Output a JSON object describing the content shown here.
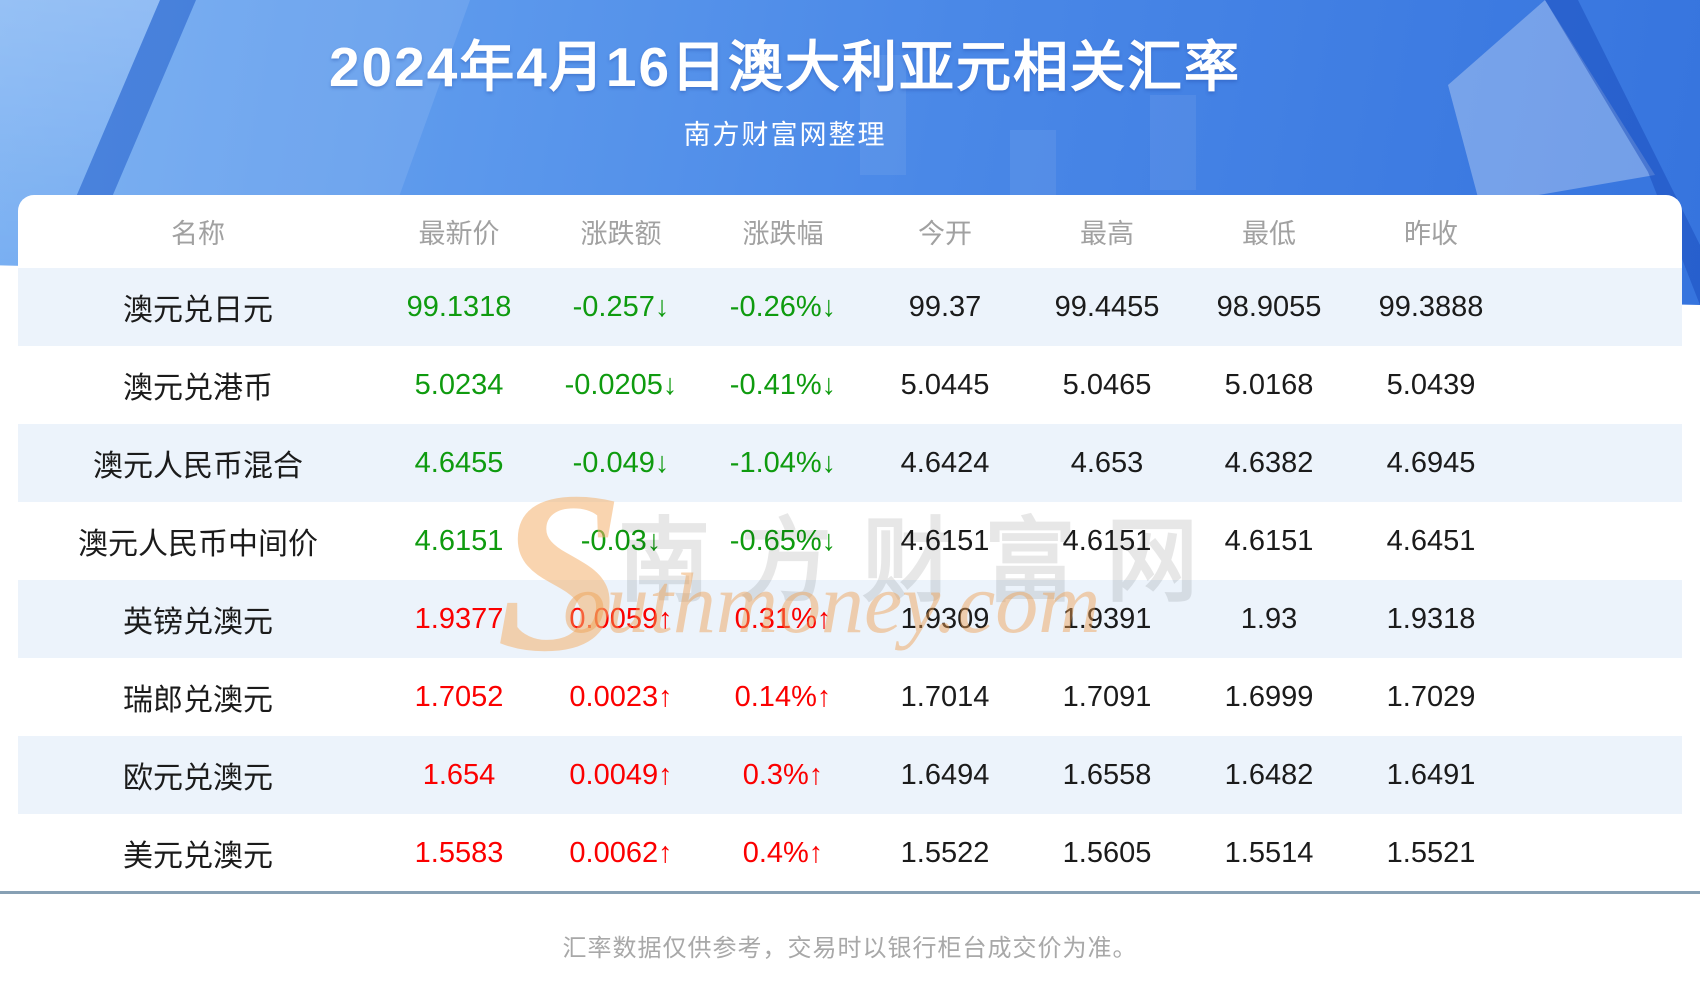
{
  "header": {
    "title": "2024年4月16日澳大利亚元相关汇率",
    "subtitle": "南方财富网整理"
  },
  "watermark": {
    "s_glyph": "S",
    "cn_text": "南方财富网",
    "en_text": "outhmoney.com"
  },
  "chart_data": {
    "type": "table",
    "title": "2024年4月16日澳大利亚元相关汇率",
    "columns": [
      "名称",
      "最新价",
      "涨跌额",
      "涨跌幅",
      "今开",
      "最高",
      "最低",
      "昨收"
    ],
    "rows": [
      [
        "澳元兑日元",
        "99.1318",
        "-0.257↓",
        "-0.26%↓",
        "99.37",
        "99.4455",
        "98.9055",
        "99.3888"
      ],
      [
        "澳元兑港币",
        "5.0234",
        "-0.0205↓",
        "-0.41%↓",
        "5.0445",
        "5.0465",
        "5.0168",
        "5.0439"
      ],
      [
        "澳元人民币混合",
        "4.6455",
        "-0.049↓",
        "-1.04%↓",
        "4.6424",
        "4.653",
        "4.6382",
        "4.6945"
      ],
      [
        "澳元人民币中间价",
        "4.6151",
        "-0.03↓",
        "-0.65%↓",
        "4.6151",
        "4.6151",
        "4.6151",
        "4.6451"
      ],
      [
        "英镑兑澳元",
        "1.9377",
        "0.0059↑",
        "0.31%↑",
        "1.9309",
        "1.9391",
        "1.93",
        "1.9318"
      ],
      [
        "瑞郎兑澳元",
        "1.7052",
        "0.0023↑",
        "0.14%↑",
        "1.7014",
        "1.7091",
        "1.6999",
        "1.7029"
      ],
      [
        "欧元兑澳元",
        "1.654",
        "0.0049↑",
        "0.3%↑",
        "1.6494",
        "1.6558",
        "1.6482",
        "1.6491"
      ],
      [
        "美元兑澳元",
        "1.5583",
        "0.0062↑",
        "0.4%↑",
        "1.5522",
        "1.5605",
        "1.5514",
        "1.5521"
      ]
    ]
  },
  "footer": {
    "disclaimer": "汇率数据仅供参考，交易时以银行柜台成交价为准。"
  },
  "colors": {
    "up_red": "#fb0000",
    "down_green": "#0f9b0f",
    "hero_blue_light": "#6ea9f1",
    "hero_blue_dark": "#3674de",
    "row_alt_bg": "#ecf3fb",
    "watermark_orange": "#ef9f50",
    "divider": "#87a0b4"
  }
}
